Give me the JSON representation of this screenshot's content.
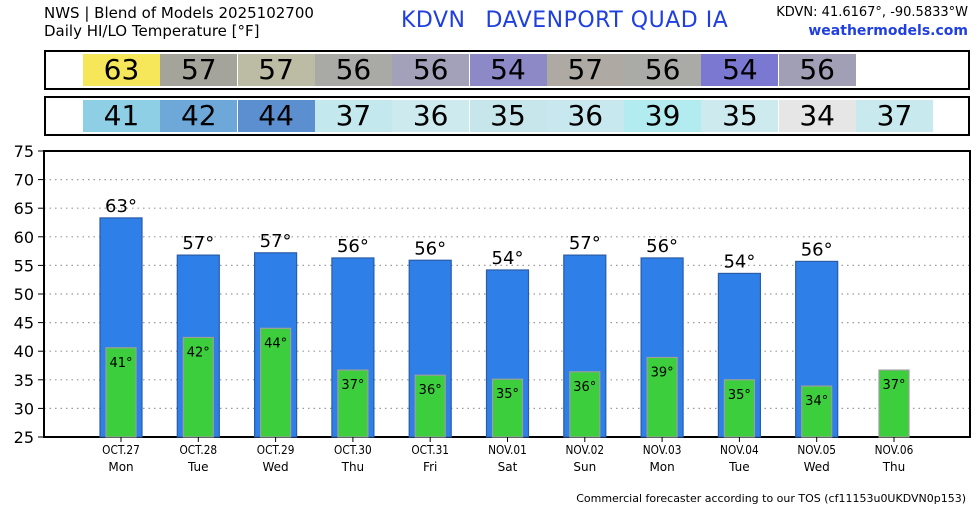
{
  "header": {
    "line1": "NWS | Blend of Models 2025102700",
    "line2": "Daily HI/LO Temperature [°F]",
    "station_code": "KDVN",
    "station_name": "DAVENPORT QUAD  IA",
    "coords": "KDVN: 41.6167°, -90.5833°W",
    "site": "weathermodels.com"
  },
  "footer": "Commercial forecaster according to our TOS (cf11153u0UKDVN0p153)",
  "colors": {
    "hi_bar": "#2f7fe8",
    "lo_bar": "#3cce3c",
    "hi_strip": [
      "#f6e65a",
      "#a4a49a",
      "#bcbca4",
      "#a9a9a6",
      "#a3a1b9",
      "#8c89c6",
      "#aeaaa3",
      "#aaaaa6",
      "#7a78d0",
      "#a09fb6"
    ],
    "lo_strip": [
      "#8ecfe6",
      "#6da8d8",
      "#5b8fcf",
      "#c3e8ee",
      "#cdeaef",
      "#c6e6ec",
      "#c6e8ee",
      "#b3ecf0",
      "#cdeaef",
      "#e6e6e6",
      "#c8eaee"
    ]
  },
  "chart_data": {
    "type": "bar",
    "title": "Daily HI/LO Temperature [°F]",
    "ylim": [
      25,
      75
    ],
    "yticks": [
      25,
      30,
      35,
      40,
      45,
      50,
      55,
      60,
      65,
      70,
      75
    ],
    "grid": true,
    "categories": [
      "OCT.27",
      "OCT.28",
      "OCT.29",
      "OCT.30",
      "OCT.31",
      "NOV.01",
      "NOV.02",
      "NOV.03",
      "NOV.04",
      "NOV.05",
      "NOV.06"
    ],
    "weekdays": [
      "Mon",
      "Tue",
      "Wed",
      "Thu",
      "Fri",
      "Sat",
      "Sun",
      "Mon",
      "Tue",
      "Wed",
      "Thu"
    ],
    "series": [
      {
        "values": [
          63.3,
          56.8,
          57.2,
          56.3,
          55.9,
          54.2,
          56.8,
          56.3,
          53.6,
          55.7,
          null
        ],
        "labels": [
          "63",
          "57",
          "57",
          "56",
          "56",
          "54",
          "57",
          "56",
          "54",
          "56",
          ""
        ]
      },
      {
        "values": [
          40.6,
          42.4,
          44.0,
          36.7,
          35.8,
          35.1,
          36.4,
          38.9,
          35.0,
          33.9,
          36.7
        ],
        "labels": [
          "41",
          "42",
          "44",
          "37",
          "36",
          "35",
          "36",
          "39",
          "35",
          "34",
          "37"
        ]
      }
    ]
  }
}
